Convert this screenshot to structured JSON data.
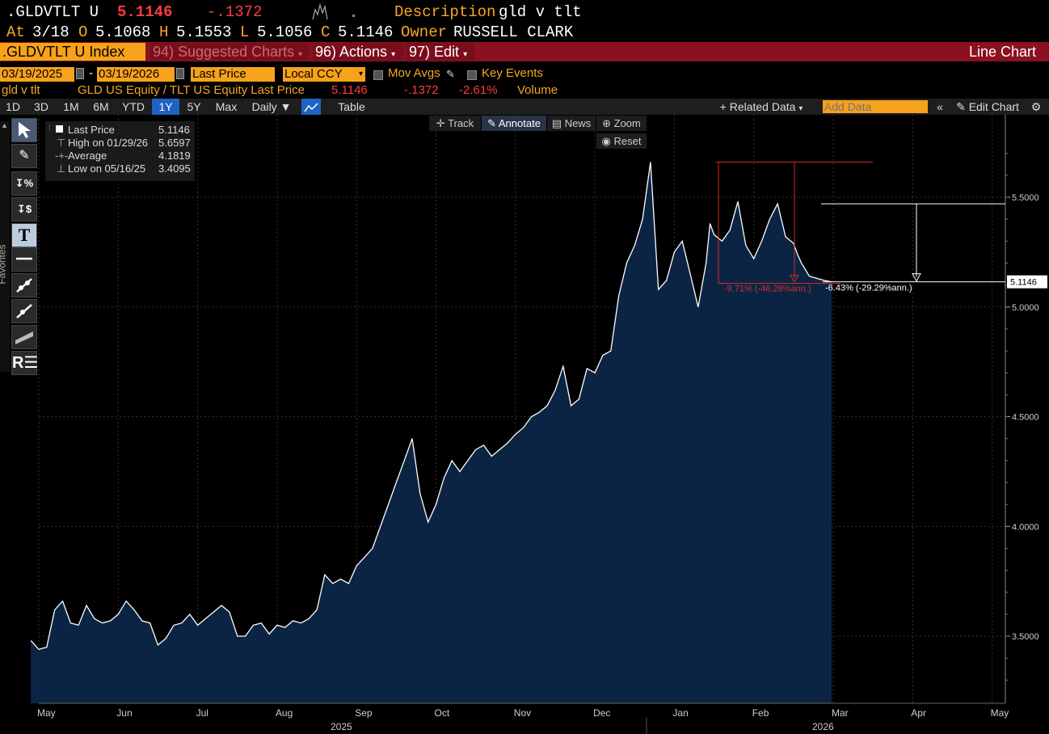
{
  "header": {
    "ticker": ".GLDVTLT U",
    "last": "5.1146",
    "change": "-.1372",
    "desc_label": "Description",
    "desc_value": "gld v tlt",
    "at_label": "At",
    "at_value": "3/18",
    "o_label": "O",
    "o_value": "5.1068",
    "h_label": "H",
    "h_value": "5.1553",
    "l_label": "L",
    "l_value": "5.1056",
    "c_label": "C",
    "c_value": "5.1146",
    "owner_label": "Owner",
    "owner_value": "RUSSELL CLARK"
  },
  "menubar": {
    "index": ".GLDVTLT U Index",
    "suggested": "94) Suggested Charts",
    "actions": "96) Actions",
    "edit": "97) Edit",
    "chart_type": "Line Chart"
  },
  "controls": {
    "start_date": "03/19/2025",
    "end_date": "03/19/2026",
    "dash": "-",
    "field": "Last Price",
    "currency": "Local CCY",
    "mov_avgs": "Mov Avgs",
    "key_events": "Key Events"
  },
  "series_line": {
    "name": "gld v tlt",
    "desc": "GLD US Equity / TLT US Equity Last Price",
    "last": "5.1146",
    "change": "-.1372",
    "pct": "-2.61%",
    "volume": "Volume"
  },
  "toolbar": {
    "periods": [
      "1D",
      "3D",
      "1M",
      "6M",
      "YTD",
      "1Y",
      "5Y",
      "Max"
    ],
    "selected": "1Y",
    "frequency": "Daily",
    "table": "Table",
    "related": "+ Related Data",
    "add_data_placeholder": "Add Data",
    "edit_chart": "Edit Chart"
  },
  "modes": {
    "track": "Track",
    "annotate": "Annotate",
    "news": "News",
    "zoom": "Zoom",
    "reset": "Reset"
  },
  "side_label": "Favorites",
  "legend": {
    "last_label": "Last Price",
    "last_value": "5.1146",
    "high_label": "High on 01/29/26",
    "high_value": "5.6597",
    "avg_label": "Average",
    "avg_value": "4.1819",
    "low_label": "Low on 05/16/25",
    "low_value": "3.4095"
  },
  "annotations": {
    "pct1": "-9.71% (-46.28%ann.)",
    "pct2": "-6.43% (-29.29%ann.)",
    "last_tag": "5.1146"
  },
  "colors": {
    "line": "#ffffff",
    "fill": "#0c2444",
    "accent": "#f7a21b",
    "negative": "#ff3d3d",
    "menubar": "#8b1020"
  },
  "chart_data": {
    "type": "area",
    "ylim": [
      3.25,
      5.8
    ],
    "yticks": [
      "5.5000",
      "5.0000",
      "4.5000",
      "4.0000",
      "3.5000"
    ],
    "yticks_values": [
      5.5,
      5.0,
      4.5,
      4.0,
      3.5
    ],
    "month_labels": [
      "May",
      "Jun",
      "Jul",
      "Aug",
      "Sep",
      "Oct",
      "Nov",
      "Dec",
      "Jan",
      "Feb",
      "Mar",
      "Apr",
      "May"
    ],
    "year_labels": [
      "2025",
      "2026"
    ],
    "grid": true,
    "months": [
      -0.1,
      0.0,
      0.1,
      0.2,
      0.3,
      0.4,
      0.5,
      0.6,
      0.7,
      0.8,
      0.9,
      1.0,
      1.1,
      1.2,
      1.3,
      1.4,
      1.5,
      1.6,
      1.7,
      1.8,
      1.9,
      2.0,
      2.1,
      2.2,
      2.3,
      2.4,
      2.5,
      2.6,
      2.7,
      2.8,
      2.9,
      3.0,
      3.1,
      3.2,
      3.3,
      3.4,
      3.5,
      3.6,
      3.7,
      3.8,
      3.9,
      4.0,
      4.1,
      4.2,
      4.3,
      4.4,
      4.5,
      4.6,
      4.7,
      4.8,
      4.9,
      5.0,
      5.1,
      5.2,
      5.3,
      5.4,
      5.5,
      5.6,
      5.7,
      5.8,
      5.9,
      6.0,
      6.1,
      6.2,
      6.3,
      6.4,
      6.5,
      6.6,
      6.7,
      6.8,
      6.9,
      7.0,
      7.1,
      7.2,
      7.3,
      7.4,
      7.5,
      7.6,
      7.7,
      7.8,
      7.9,
      8.0,
      8.1,
      8.2,
      8.3,
      8.4,
      8.45,
      8.5,
      8.6,
      8.7,
      8.8,
      8.9,
      9.0,
      9.1,
      9.2,
      9.3,
      9.4,
      9.5,
      9.55,
      9.6,
      9.7,
      9.8,
      9.9,
      9.98
    ],
    "values": [
      3.48,
      3.44,
      3.45,
      3.62,
      3.66,
      3.56,
      3.55,
      3.64,
      3.58,
      3.56,
      3.57,
      3.6,
      3.66,
      3.62,
      3.57,
      3.56,
      3.46,
      3.49,
      3.55,
      3.56,
      3.6,
      3.55,
      3.58,
      3.61,
      3.64,
      3.61,
      3.5,
      3.5,
      3.55,
      3.56,
      3.51,
      3.55,
      3.54,
      3.57,
      3.56,
      3.58,
      3.62,
      3.78,
      3.74,
      3.76,
      3.74,
      3.82,
      3.86,
      3.9,
      4.0,
      4.1,
      4.2,
      4.3,
      4.4,
      4.15,
      4.02,
      4.1,
      4.22,
      4.3,
      4.25,
      4.3,
      4.35,
      4.37,
      4.32,
      4.35,
      4.38,
      4.42,
      4.45,
      4.5,
      4.52,
      4.55,
      4.62,
      4.73,
      4.55,
      4.58,
      4.72,
      4.7,
      4.78,
      4.8,
      5.05,
      5.2,
      5.28,
      5.4,
      5.66,
      5.08,
      5.12,
      5.25,
      5.3,
      5.15,
      5.0,
      5.2,
      5.38,
      5.33,
      5.3,
      5.35,
      5.48,
      5.28,
      5.22,
      5.3,
      5.4,
      5.47,
      5.32,
      5.29,
      5.24,
      5.2,
      5.14,
      5.13,
      5.12,
      5.1146
    ]
  }
}
